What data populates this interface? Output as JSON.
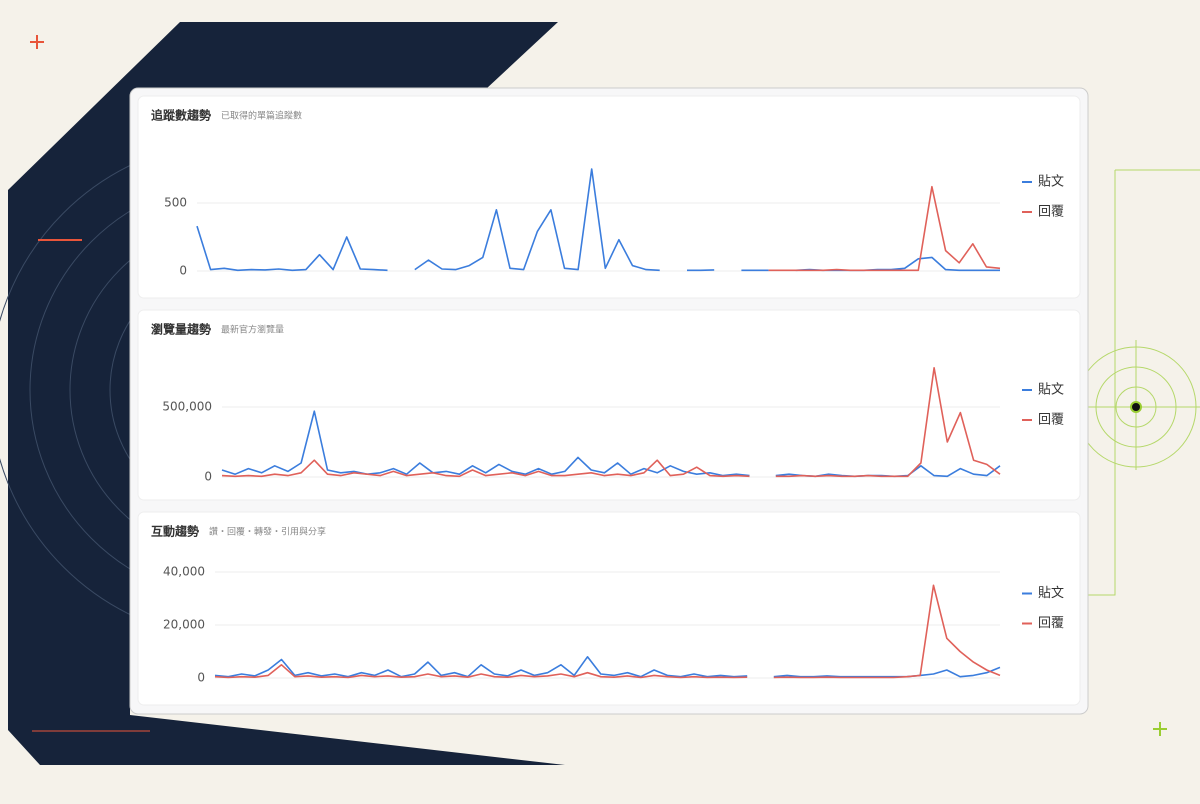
{
  "chart_data": [
    {
      "type": "line",
      "title": "追蹤數趨勢",
      "subtitle": "已取得的單篇追蹤數",
      "ylim": [
        0,
        1000
      ],
      "yticks": [
        0,
        500
      ],
      "grid": true,
      "series": [
        {
          "name": "貼文",
          "color": "#3b7ddd",
          "values": [
            330,
            10,
            20,
            5,
            10,
            8,
            15,
            5,
            10,
            120,
            10,
            250,
            15,
            10,
            5,
            null,
            10,
            80,
            15,
            10,
            40,
            100,
            450,
            20,
            10,
            290,
            450,
            20,
            10,
            750,
            20,
            230,
            40,
            10,
            5,
            null,
            5,
            5,
            8,
            null,
            5,
            5,
            5,
            null,
            5,
            10,
            5,
            5,
            5,
            5,
            10,
            10,
            20,
            90,
            100,
            10,
            5,
            5,
            5,
            5
          ]
        },
        {
          "name": "回覆",
          "color": "#e0615a",
          "values": [
            null,
            null,
            null,
            null,
            null,
            null,
            null,
            null,
            null,
            null,
            null,
            null,
            null,
            null,
            null,
            null,
            null,
            null,
            null,
            null,
            null,
            null,
            null,
            null,
            null,
            null,
            null,
            null,
            null,
            null,
            null,
            null,
            null,
            null,
            null,
            null,
            null,
            null,
            null,
            null,
            null,
            null,
            5,
            5,
            5,
            5,
            5,
            10,
            5,
            5,
            5,
            5,
            5,
            5,
            620,
            150,
            60,
            200,
            30,
            20
          ]
        }
      ]
    },
    {
      "type": "line",
      "title": "瀏覽量趨勢",
      "subtitle": "最新官方瀏覽量",
      "ylim": [
        0,
        900000
      ],
      "yticks": [
        0,
        {
          "value": 500000,
          "label": "500,000"
        }
      ],
      "grid": true,
      "series": [
        {
          "name": "貼文",
          "color": "#3b7ddd",
          "values": [
            50000,
            20000,
            60000,
            30000,
            80000,
            40000,
            100000,
            470000,
            50000,
            30000,
            40000,
            20000,
            30000,
            60000,
            20000,
            100000,
            30000,
            40000,
            20000,
            80000,
            30000,
            90000,
            40000,
            20000,
            60000,
            20000,
            40000,
            140000,
            50000,
            30000,
            100000,
            20000,
            60000,
            30000,
            80000,
            40000,
            20000,
            30000,
            10000,
            20000,
            10000,
            null,
            10000,
            20000,
            10000,
            5000,
            20000,
            10000,
            5000,
            10000,
            10000,
            5000,
            10000,
            80000,
            10000,
            5000,
            60000,
            20000,
            10000,
            80000
          ]
        },
        {
          "name": "回覆",
          "color": "#e0615a",
          "values": [
            10000,
            5000,
            10000,
            5000,
            20000,
            10000,
            30000,
            120000,
            20000,
            10000,
            30000,
            20000,
            10000,
            40000,
            10000,
            20000,
            30000,
            10000,
            5000,
            50000,
            10000,
            20000,
            30000,
            10000,
            40000,
            10000,
            10000,
            20000,
            30000,
            10000,
            20000,
            10000,
            30000,
            120000,
            10000,
            20000,
            70000,
            10000,
            5000,
            10000,
            5000,
            null,
            5000,
            5000,
            10000,
            5000,
            10000,
            5000,
            5000,
            10000,
            5000,
            5000,
            5000,
            100000,
            780000,
            250000,
            460000,
            120000,
            90000,
            20000
          ]
        }
      ]
    },
    {
      "type": "line",
      "title": "互動趨勢",
      "subtitle": "讚・回覆・轉發・引用與分享",
      "ylim": [
        0,
        40000
      ],
      "yticks": [
        0,
        {
          "value": 20000,
          "label": "20,000"
        },
        {
          "value": 40000,
          "label": "40,000"
        }
      ],
      "grid": true,
      "series": [
        {
          "name": "貼文",
          "color": "#3b7ddd",
          "values": [
            1000,
            500,
            1500,
            800,
            3000,
            7000,
            1000,
            2000,
            800,
            1500,
            500,
            2000,
            1000,
            3000,
            500,
            1500,
            6000,
            1000,
            2000,
            500,
            5000,
            1500,
            800,
            3000,
            1000,
            2000,
            5000,
            1000,
            8000,
            1500,
            1000,
            2000,
            500,
            3000,
            1000,
            500,
            1500,
            500,
            1000,
            500,
            800,
            null,
            500,
            1000,
            500,
            500,
            800,
            500,
            500,
            500,
            500,
            500,
            500,
            1000,
            1500,
            3000,
            500,
            1000,
            2000,
            4000
          ]
        },
        {
          "name": "回覆",
          "color": "#e0615a",
          "values": [
            500,
            200,
            500,
            300,
            1000,
            5000,
            500,
            800,
            300,
            500,
            200,
            1000,
            500,
            800,
            300,
            500,
            1500,
            500,
            800,
            300,
            1500,
            500,
            300,
            1000,
            500,
            800,
            1500,
            500,
            2000,
            500,
            300,
            800,
            200,
            1000,
            500,
            200,
            500,
            200,
            300,
            200,
            300,
            null,
            200,
            300,
            200,
            200,
            300,
            200,
            200,
            200,
            200,
            200,
            500,
            1000,
            35000,
            15000,
            10000,
            6000,
            3000,
            1000
          ]
        }
      ]
    }
  ]
}
